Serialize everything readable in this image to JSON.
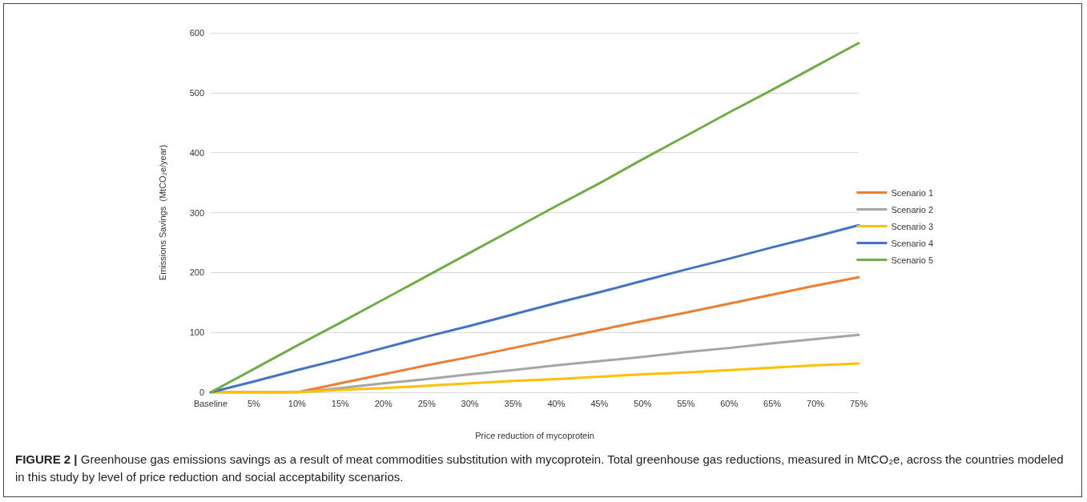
{
  "chart_data": {
    "type": "line",
    "xlabel": "Price reduction of mycoprotein",
    "ylabel": "Emissions Savings  (MtCO₂e/year)",
    "categories": [
      "Baseline",
      "5%",
      "10%",
      "15%",
      "20%",
      "25%",
      "30%",
      "35%",
      "40%",
      "45%",
      "50%",
      "55%",
      "60%",
      "65%",
      "70%",
      "75%"
    ],
    "series": [
      {
        "name": "Scenario 1",
        "color": "#ed7d31",
        "values": [
          0,
          0,
          0,
          15,
          30,
          45,
          59,
          74,
          89,
          104,
          119,
          133,
          148,
          163,
          178,
          192
        ]
      },
      {
        "name": "Scenario 2",
        "color": "#a5a5a5",
        "values": [
          0,
          0,
          0,
          7,
          15,
          22,
          30,
          37,
          45,
          52,
          59,
          67,
          74,
          82,
          89,
          96
        ]
      },
      {
        "name": "Scenario 3",
        "color": "#ffc000",
        "values": [
          0,
          0,
          0,
          4,
          7,
          11,
          15,
          19,
          22,
          26,
          30,
          33,
          37,
          41,
          45,
          48
        ]
      },
      {
        "name": "Scenario 4",
        "color": "#4472c4",
        "values": [
          0,
          18,
          37,
          55,
          74,
          93,
          111,
          130,
          149,
          167,
          186,
          205,
          223,
          242,
          260,
          279
        ]
      },
      {
        "name": "Scenario 5",
        "color": "#70ad47",
        "values": [
          0,
          39,
          78,
          116,
          155,
          194,
          233,
          272,
          311,
          349,
          389,
          428,
          467,
          505,
          544,
          583
        ]
      }
    ],
    "ylim": [
      0,
      600
    ],
    "yticks": [
      0,
      100,
      200,
      300,
      400,
      500,
      600
    ],
    "grid": "y",
    "legend": "right",
    "marker": "none",
    "line_style": "solid",
    "annotations": [
      "FIGURE 2 | Greenhouse gas emissions savings as a result of meat commodities substitution with mycoprotein. Total greenhouse gas reductions, measured in MtCO₂e, across the countries modeled in this study by level of price reduction and social acceptability scenarios."
    ]
  }
}
